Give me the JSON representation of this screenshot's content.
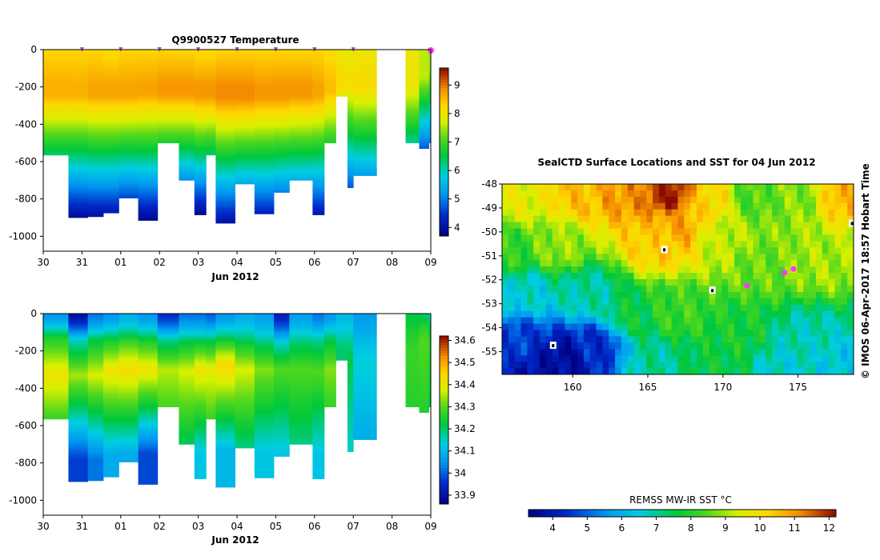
{
  "chart_data": [
    {
      "type": "heatmap",
      "title": "Q9900527  Temperature",
      "xlabel": "Jun 2012",
      "x_tick_labels": [
        "30",
        "31",
        "01",
        "02",
        "03",
        "04",
        "05",
        "06",
        "07",
        "08",
        "09"
      ],
      "x_range_days": [
        0,
        10
      ],
      "y_tick_labels": [
        "0",
        "-200",
        "-400",
        "-600",
        "-800",
        "-1000"
      ],
      "ylim": [
        -1080,
        0
      ],
      "colorbar": {
        "ticks": [
          "4",
          "5",
          "6",
          "7",
          "8",
          "9"
        ],
        "min": 3.7,
        "max": 9.6
      },
      "profile_markers_day": [
        1.0,
        2.0,
        3.0,
        4.0,
        5.0,
        6.0,
        7.0,
        8.0,
        10.0
      ],
      "profiles": [
        {
          "x0": 0.0,
          "x1": 0.65,
          "bottom": -565,
          "surface": 8.3,
          "mix": 180,
          "core": 8.6,
          "core_depth": 250,
          "grad": 0.0072
        },
        {
          "x0": 0.65,
          "x1": 1.15,
          "bottom": -900,
          "surface": 8.3,
          "mix": 190,
          "core": 8.6,
          "core_depth": 250,
          "grad": 0.0072
        },
        {
          "x0": 1.15,
          "x1": 1.55,
          "bottom": -895,
          "surface": 8.3,
          "mix": 190,
          "core": 8.7,
          "core_depth": 250,
          "grad": 0.0073
        },
        {
          "x0": 1.55,
          "x1": 1.95,
          "bottom": -875,
          "surface": 8.2,
          "mix": 190,
          "core": 8.7,
          "core_depth": 250,
          "grad": 0.0073
        },
        {
          "x0": 1.95,
          "x1": 2.45,
          "bottom": -795,
          "surface": 8.3,
          "mix": 190,
          "core": 8.7,
          "core_depth": 250,
          "grad": 0.0075
        },
        {
          "x0": 2.45,
          "x1": 2.95,
          "bottom": -915,
          "surface": 8.3,
          "mix": 180,
          "core": 8.7,
          "core_depth": 240,
          "grad": 0.0072
        },
        {
          "x0": 2.95,
          "x1": 3.5,
          "bottom": -500,
          "surface": 8.3,
          "mix": 180,
          "core": 8.8,
          "core_depth": 240,
          "grad": 0.008
        },
        {
          "x0": 3.5,
          "x1": 3.9,
          "bottom": -700,
          "surface": 8.3,
          "mix": 180,
          "core": 8.8,
          "core_depth": 240,
          "grad": 0.008
        },
        {
          "x0": 3.9,
          "x1": 4.2,
          "bottom": -885,
          "surface": 8.2,
          "mix": 190,
          "core": 8.8,
          "core_depth": 250,
          "grad": 0.0078
        },
        {
          "x0": 4.2,
          "x1": 4.45,
          "bottom": -565,
          "surface": 8.2,
          "mix": 190,
          "core": 8.8,
          "core_depth": 250,
          "grad": 0.008
        },
        {
          "x0": 4.45,
          "x1": 4.95,
          "bottom": -930,
          "surface": 8.3,
          "mix": 200,
          "core": 8.9,
          "core_depth": 260,
          "grad": 0.0073
        },
        {
          "x0": 4.95,
          "x1": 5.45,
          "bottom": -720,
          "surface": 8.3,
          "mix": 200,
          "core": 8.9,
          "core_depth": 260,
          "grad": 0.0076
        },
        {
          "x0": 5.45,
          "x1": 5.95,
          "bottom": -880,
          "surface": 8.3,
          "mix": 200,
          "core": 8.8,
          "core_depth": 260,
          "grad": 0.0073
        },
        {
          "x0": 5.95,
          "x1": 6.35,
          "bottom": -765,
          "surface": 8.3,
          "mix": 190,
          "core": 8.8,
          "core_depth": 260,
          "grad": 0.0075
        },
        {
          "x0": 6.35,
          "x1": 6.95,
          "bottom": -700,
          "surface": 8.3,
          "mix": 190,
          "core": 8.8,
          "core_depth": 250,
          "grad": 0.0074
        },
        {
          "x0": 6.95,
          "x1": 7.25,
          "bottom": -885,
          "surface": 8.3,
          "mix": 190,
          "core": 8.7,
          "core_depth": 250,
          "grad": 0.0072
        },
        {
          "x0": 7.25,
          "x1": 7.55,
          "bottom": -500,
          "surface": 8.2,
          "mix": 170,
          "core": 8.5,
          "core_depth": 230,
          "grad": 0.0065
        },
        {
          "x0": 7.55,
          "x1": 7.85,
          "bottom": -250,
          "surface": 8.0,
          "mix": 150,
          "core": 8.2,
          "core_depth": 200,
          "grad": 0.006
        },
        {
          "x0": 7.85,
          "x1": 8.0,
          "bottom": -740,
          "surface": 7.9,
          "mix": 160,
          "core": 8.1,
          "core_depth": 200,
          "grad": 0.0062
        },
        {
          "x0": 8.0,
          "x1": 8.6,
          "bottom": -675,
          "surface": 8.0,
          "mix": 170,
          "core": 8.2,
          "core_depth": 210,
          "grad": 0.0063
        },
        {
          "x0": 9.35,
          "x1": 9.7,
          "bottom": -500,
          "surface": 8.0,
          "mix": 150,
          "core": 8.0,
          "core_depth": 200,
          "grad": 0.0062
        },
        {
          "x0": 9.7,
          "x1": 9.95,
          "bottom": -530,
          "surface": 7.6,
          "mix": 110,
          "core": 7.6,
          "core_depth": 150,
          "grad": 0.0075
        },
        {
          "x0": 9.95,
          "x1": 10.0,
          "bottom": -500,
          "surface": 7.4,
          "mix": 100,
          "core": 7.4,
          "core_depth": 120,
          "grad": 0.0065
        }
      ]
    },
    {
      "type": "heatmap",
      "title": "",
      "xlabel": "Jun 2012",
      "x_tick_labels": [
        "30",
        "31",
        "01",
        "02",
        "03",
        "04",
        "05",
        "06",
        "07",
        "08",
        "09"
      ],
      "x_range_days": [
        0,
        10
      ],
      "y_tick_labels": [
        "0",
        "-200",
        "-400",
        "-600",
        "-800",
        "-1000"
      ],
      "ylim": [
        -1080,
        0
      ],
      "colorbar": {
        "ticks": [
          "33.9",
          "34",
          "34.1",
          "34.2",
          "34.3",
          "34.4",
          "34.5",
          "34.6"
        ],
        "min": 33.86,
        "max": 34.62
      },
      "profiles": [
        {
          "x0": 0.0,
          "x1": 0.65,
          "bottom": -565,
          "surface": 34.05,
          "halo": 130,
          "max": 34.42,
          "max_depth": 330,
          "deep": 34.15
        },
        {
          "x0": 0.65,
          "x1": 1.15,
          "bottom": -900,
          "surface": 33.9,
          "halo": 140,
          "max": 34.35,
          "max_depth": 330,
          "deep": 33.97
        },
        {
          "x0": 1.15,
          "x1": 1.55,
          "bottom": -895,
          "surface": 34.02,
          "halo": 140,
          "max": 34.38,
          "max_depth": 330,
          "deep": 34.02
        },
        {
          "x0": 1.55,
          "x1": 1.95,
          "bottom": -875,
          "surface": 34.05,
          "halo": 150,
          "max": 34.42,
          "max_depth": 310,
          "deep": 34.08
        },
        {
          "x0": 1.95,
          "x1": 2.45,
          "bottom": -795,
          "surface": 34.08,
          "halo": 150,
          "max": 34.44,
          "max_depth": 300,
          "deep": 34.08
        },
        {
          "x0": 2.45,
          "x1": 2.95,
          "bottom": -915,
          "surface": 34.05,
          "halo": 150,
          "max": 34.42,
          "max_depth": 300,
          "deep": 33.98
        },
        {
          "x0": 2.95,
          "x1": 3.5,
          "bottom": -500,
          "surface": 33.95,
          "halo": 140,
          "max": 34.36,
          "max_depth": 300,
          "deep": 34.2
        },
        {
          "x0": 3.5,
          "x1": 3.9,
          "bottom": -700,
          "surface": 34.02,
          "halo": 150,
          "max": 34.38,
          "max_depth": 310,
          "deep": 34.18
        },
        {
          "x0": 3.9,
          "x1": 4.2,
          "bottom": -885,
          "surface": 34.02,
          "halo": 160,
          "max": 34.42,
          "max_depth": 300,
          "deep": 34.12
        },
        {
          "x0": 4.2,
          "x1": 4.45,
          "bottom": -565,
          "surface": 34.0,
          "halo": 150,
          "max": 34.4,
          "max_depth": 300,
          "deep": 34.2
        },
        {
          "x0": 4.45,
          "x1": 4.95,
          "bottom": -930,
          "surface": 34.05,
          "halo": 160,
          "max": 34.45,
          "max_depth": 280,
          "deep": 34.1
        },
        {
          "x0": 4.95,
          "x1": 5.45,
          "bottom": -720,
          "surface": 34.08,
          "halo": 170,
          "max": 34.38,
          "max_depth": 300,
          "deep": 34.17
        },
        {
          "x0": 5.45,
          "x1": 5.95,
          "bottom": -880,
          "surface": 34.06,
          "halo": 170,
          "max": 34.33,
          "max_depth": 300,
          "deep": 34.12
        },
        {
          "x0": 5.95,
          "x1": 6.35,
          "bottom": -765,
          "surface": 33.93,
          "halo": 150,
          "max": 34.3,
          "max_depth": 300,
          "deep": 34.12
        },
        {
          "x0": 6.35,
          "x1": 6.95,
          "bottom": -700,
          "surface": 34.06,
          "halo": 150,
          "max": 34.3,
          "max_depth": 300,
          "deep": 34.17
        },
        {
          "x0": 6.95,
          "x1": 7.25,
          "bottom": -885,
          "surface": 34.02,
          "halo": 140,
          "max": 34.3,
          "max_depth": 310,
          "deep": 34.12
        },
        {
          "x0": 7.25,
          "x1": 7.55,
          "bottom": -500,
          "surface": 34.05,
          "halo": 130,
          "max": 34.33,
          "max_depth": 300,
          "deep": 34.2
        },
        {
          "x0": 7.55,
          "x1": 7.85,
          "bottom": -250,
          "surface": 34.1,
          "halo": 120,
          "max": 34.2,
          "max_depth": 180,
          "deep": 34.18
        },
        {
          "x0": 7.85,
          "x1": 8.0,
          "bottom": -740,
          "surface": 34.1,
          "halo": 120,
          "max": 34.22,
          "max_depth": 250,
          "deep": 34.15
        },
        {
          "x0": 8.0,
          "x1": 8.6,
          "bottom": -675,
          "surface": 34.06,
          "halo": 140,
          "max": 34.14,
          "max_depth": 260,
          "deep": 34.08
        },
        {
          "x0": 9.35,
          "x1": 9.7,
          "bottom": -500,
          "surface": 34.22,
          "halo": 100,
          "max": 34.28,
          "max_depth": 200,
          "deep": 34.25
        },
        {
          "x0": 9.7,
          "x1": 9.95,
          "bottom": -530,
          "surface": 34.2,
          "halo": 60,
          "max": 34.3,
          "max_depth": 150,
          "deep": 34.25
        },
        {
          "x0": 9.95,
          "x1": 10.0,
          "bottom": -500,
          "surface": 34.15,
          "halo": 60,
          "max": 34.25,
          "max_depth": 150,
          "deep": 34.22
        }
      ]
    },
    {
      "type": "heatmap",
      "title": "SealCTD Surface Locations and SST for 04 Jun 2012",
      "x_tick_labels": [
        "160",
        "165",
        "170",
        "175"
      ],
      "x_tick_values": [
        160,
        165,
        170,
        175
      ],
      "xlim": [
        155.3,
        178.7
      ],
      "y_tick_labels": [
        "-48",
        "-49",
        "-50",
        "-51",
        "-52",
        "-53",
        "-54",
        "-55"
      ],
      "y_tick_values": [
        -48,
        -49,
        -50,
        -51,
        -52,
        -53,
        -54,
        -55
      ],
      "ylim": [
        -55.95,
        -48.0
      ],
      "colorbar": {
        "label": "REMSS MW-IR SST °C",
        "ticks": [
          "4",
          "5",
          "6",
          "7",
          "8",
          "9",
          "10",
          "11",
          "12"
        ],
        "min": 3.3,
        "max": 12.2
      },
      "sst_anchors": [
        {
          "lon": 156.5,
          "lat": -48.6,
          "sst": 9.6
        },
        {
          "lon": 160.5,
          "lat": -48.4,
          "sst": 10.5
        },
        {
          "lon": 163.5,
          "lat": -48.3,
          "sst": 11.0
        },
        {
          "lon": 166.5,
          "lat": -48.4,
          "sst": 12.0
        },
        {
          "lon": 169.0,
          "lat": -48.7,
          "sst": 10.2
        },
        {
          "lon": 172.0,
          "lat": -48.6,
          "sst": 8.4
        },
        {
          "lon": 175.0,
          "lat": -48.5,
          "sst": 8.8
        },
        {
          "lon": 178.0,
          "lat": -48.4,
          "sst": 10.6
        },
        {
          "lon": 165.5,
          "lat": -50.5,
          "sst": 10.3
        },
        {
          "lon": 167.0,
          "lat": -49.8,
          "sst": 10.8
        },
        {
          "lon": 170.0,
          "lat": -50.3,
          "sst": 9.2
        },
        {
          "lon": 159.0,
          "lat": -50.6,
          "sst": 8.9
        },
        {
          "lon": 156.0,
          "lat": -50.8,
          "sst": 8.1
        },
        {
          "lon": 172.5,
          "lat": -51.3,
          "sst": 8.6
        },
        {
          "lon": 176.5,
          "lat": -51.2,
          "sst": 9.0
        },
        {
          "lon": 157.0,
          "lat": -52.5,
          "sst": 6.6
        },
        {
          "lon": 161.0,
          "lat": -52.6,
          "sst": 6.9
        },
        {
          "lon": 164.0,
          "lat": -53.5,
          "sst": 7.6
        },
        {
          "lon": 167.0,
          "lat": -53.3,
          "sst": 8.2
        },
        {
          "lon": 171.0,
          "lat": -54.2,
          "sst": 7.8
        },
        {
          "lon": 175.5,
          "lat": -54.5,
          "sst": 6.8
        },
        {
          "lon": 156.5,
          "lat": -54.6,
          "sst": 4.6
        },
        {
          "lon": 159.5,
          "lat": -55.3,
          "sst": 3.6
        },
        {
          "lon": 161.5,
          "lat": -54.8,
          "sst": 4.4
        },
        {
          "lon": 158.0,
          "lat": -55.6,
          "sst": 3.8
        },
        {
          "lon": 165.5,
          "lat": -55.5,
          "sst": 7.0
        },
        {
          "lon": 169.5,
          "lat": -55.6,
          "sst": 7.6
        },
        {
          "lon": 174.0,
          "lat": -55.7,
          "sst": 6.6
        },
        {
          "lon": 178.0,
          "lat": -55.6,
          "sst": 6.4
        }
      ],
      "cloud_gaps": [
        {
          "lon": 166.1,
          "lat": -50.75
        },
        {
          "lon": 169.3,
          "lat": -52.45
        },
        {
          "lon": 158.7,
          "lat": -54.75
        },
        {
          "lon": 178.6,
          "lat": -49.65
        }
      ],
      "seal_locations": [
        {
          "lon": 171.6,
          "lat": -52.25
        },
        {
          "lon": 174.1,
          "lat": -51.7
        },
        {
          "lon": 174.7,
          "lat": -51.55
        }
      ]
    }
  ],
  "colors": {
    "seal_marker": "#ff33ff",
    "profile_marker": "#c23bd8",
    "axis": "#000000"
  },
  "copyright": "© IMOS 06-Apr-2017 18:57 Hobart Time"
}
